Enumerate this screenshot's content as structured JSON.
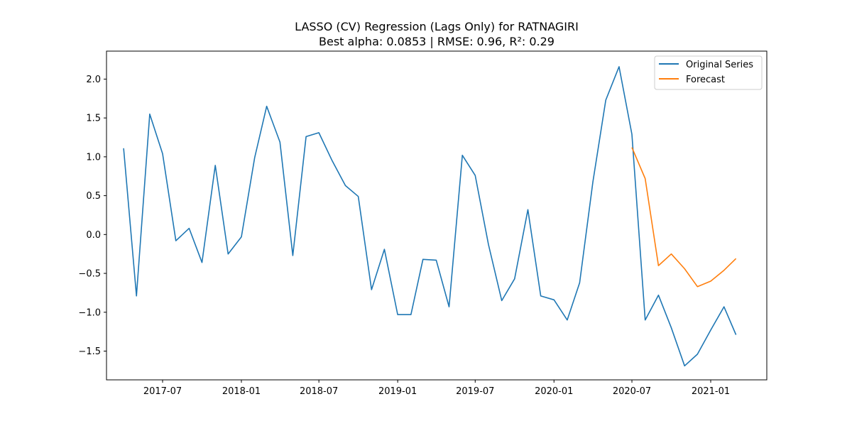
{
  "chart_data": {
    "type": "line",
    "title": "LASSO (CV) Regression (Lags Only) for RATNAGIRI",
    "subtitle": "Best alpha: 0.0853 | RMSE: 0.96, R²: 0.29",
    "xlabel": "",
    "ylabel": "",
    "xlim": [
      "2017-02-20",
      "2021-05-12"
    ],
    "ylim": [
      -1.87,
      2.36
    ],
    "x_ticks": [
      "2017-07",
      "2018-01",
      "2018-07",
      "2019-01",
      "2019-07",
      "2020-01",
      "2020-07",
      "2021-01"
    ],
    "y_ticks": [
      -1.5,
      -1.0,
      -0.5,
      0.0,
      0.5,
      1.0,
      1.5,
      2.0
    ],
    "y_tick_labels": [
      "−1.5",
      "−1.0",
      "−0.5",
      "0.0",
      "0.5",
      "1.0",
      "1.5",
      "2.0"
    ],
    "grid": false,
    "legend_position": "top-right",
    "series": [
      {
        "name": "Original Series",
        "color": "#1f77b4",
        "x": [
          "2017-04-01",
          "2017-05-01",
          "2017-06-01",
          "2017-07-01",
          "2017-08-01",
          "2017-09-01",
          "2017-10-01",
          "2017-11-01",
          "2017-12-01",
          "2018-01-01",
          "2018-02-01",
          "2018-03-01",
          "2018-04-01",
          "2018-05-01",
          "2018-06-01",
          "2018-07-01",
          "2018-08-01",
          "2018-09-01",
          "2018-10-01",
          "2018-11-01",
          "2018-12-01",
          "2019-01-01",
          "2019-02-01",
          "2019-03-01",
          "2019-04-01",
          "2019-05-01",
          "2019-06-01",
          "2019-07-01",
          "2019-08-01",
          "2019-09-01",
          "2019-10-01",
          "2019-11-01",
          "2019-12-01",
          "2020-01-01",
          "2020-02-01",
          "2020-03-01",
          "2020-04-01",
          "2020-05-01",
          "2020-06-01",
          "2020-07-01",
          "2020-08-01",
          "2020-09-01",
          "2020-10-01",
          "2020-11-01",
          "2020-12-01",
          "2021-01-01",
          "2021-02-01",
          "2021-03-01"
        ],
        "values": [
          1.11,
          -0.79,
          1.55,
          1.04,
          -0.08,
          0.08,
          -0.36,
          0.89,
          -0.25,
          -0.03,
          0.99,
          1.65,
          1.19,
          -0.27,
          1.26,
          1.31,
          0.95,
          0.63,
          0.49,
          -0.71,
          -0.19,
          -1.03,
          -1.03,
          -0.32,
          -0.33,
          -0.93,
          1.02,
          0.76,
          -0.13,
          -0.85,
          -0.57,
          0.32,
          -0.79,
          -0.84,
          -1.1,
          -0.62,
          0.68,
          1.73,
          2.16,
          1.29,
          -1.1,
          -0.78,
          -1.2,
          -1.69,
          -1.54,
          -1.23,
          -0.93,
          -1.29
        ]
      },
      {
        "name": "Forecast",
        "color": "#ff7f0e",
        "x": [
          "2020-07-01",
          "2020-08-01",
          "2020-09-01",
          "2020-10-01",
          "2020-11-01",
          "2020-12-01",
          "2021-01-01",
          "2021-02-01",
          "2021-03-01"
        ],
        "values": [
          1.12,
          0.72,
          -0.4,
          -0.25,
          -0.44,
          -0.67,
          -0.6,
          -0.46,
          -0.31
        ]
      }
    ]
  }
}
